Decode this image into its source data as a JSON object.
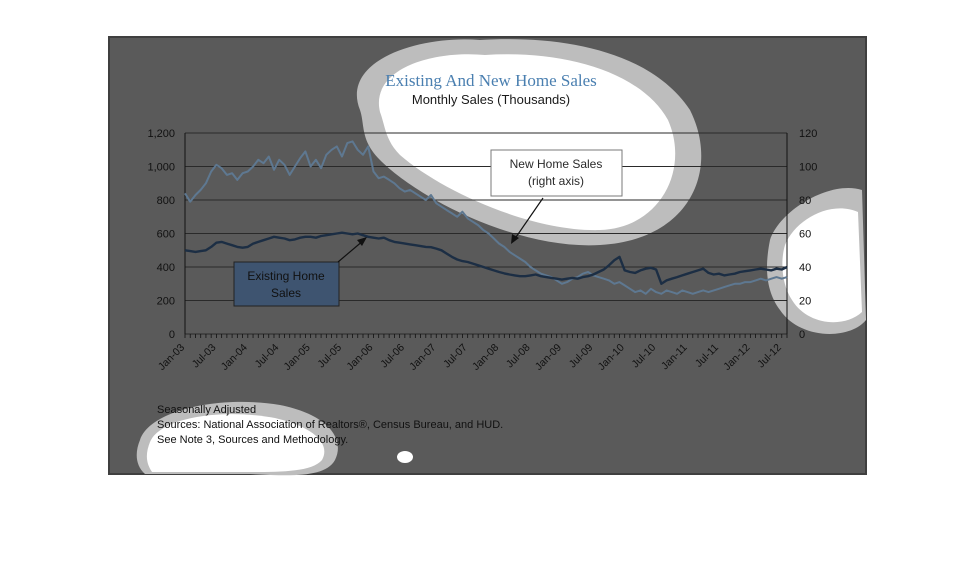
{
  "chart_data": {
    "type": "line",
    "title": "Existing And New Home Sales",
    "subtitle": "Monthly Sales (Thousands)",
    "x_tick_labels": [
      "Jan-03",
      "Jul-03",
      "Jan-04",
      "Jul-04",
      "Jan-05",
      "Jul-05",
      "Jan-06",
      "Jul-06",
      "Jan-07",
      "Jul-07",
      "Jan-08",
      "Jul-08",
      "Jan-09",
      "Jul-09",
      "Jan-10",
      "Jul-10",
      "Jan-11",
      "Jul-11",
      "Jan-12",
      "Jul-12"
    ],
    "y_left": {
      "min": 0,
      "max": 1200,
      "step": 200,
      "tick_labels": [
        "0",
        "200",
        "400",
        "600",
        "800",
        "1,000",
        "1,200"
      ]
    },
    "y_right": {
      "min": 0,
      "max": 120,
      "step": 20,
      "tick_labels": [
        "0",
        "20",
        "40",
        "60",
        "80",
        "100",
        "120"
      ]
    },
    "grid": true,
    "months": 116,
    "series": [
      {
        "name": "New Home Sales (right axis)",
        "axis": "right",
        "color": "#5e7891",
        "values": [
          84,
          79,
          83,
          86,
          90,
          97,
          101,
          99,
          95,
          96,
          92,
          96,
          97,
          100,
          104,
          102,
          106,
          98,
          104,
          101,
          95,
          100,
          105,
          109,
          100,
          104,
          99,
          107,
          110,
          112,
          106,
          114,
          115,
          110,
          107,
          112,
          97,
          93,
          94,
          92,
          90,
          87,
          85,
          86,
          84,
          82,
          80,
          83,
          78,
          76,
          74,
          72,
          70,
          73,
          69,
          67,
          65,
          62,
          60,
          57,
          54,
          52,
          49,
          47,
          45,
          43,
          40,
          38,
          36,
          35,
          34,
          32,
          30,
          31,
          33,
          34,
          36,
          37,
          35,
          34,
          33,
          32,
          30,
          31,
          29,
          27,
          25,
          26,
          24,
          27,
          25,
          24,
          26,
          25,
          24,
          26,
          25,
          24,
          25,
          26,
          25,
          26,
          27,
          28,
          29,
          30,
          30,
          31,
          31,
          32,
          33,
          32,
          33,
          34,
          33,
          34
        ]
      },
      {
        "name": "Existing Home Sales",
        "axis": "left",
        "color": "#1c2e44",
        "values": [
          500,
          495,
          490,
          495,
          500,
          520,
          545,
          550,
          540,
          530,
          520,
          515,
          520,
          540,
          550,
          560,
          570,
          580,
          575,
          570,
          560,
          565,
          575,
          580,
          580,
          575,
          585,
          590,
          595,
          600,
          605,
          600,
          595,
          600,
          590,
          580,
          575,
          570,
          575,
          560,
          550,
          545,
          540,
          535,
          530,
          525,
          520,
          518,
          510,
          500,
          480,
          460,
          445,
          435,
          430,
          420,
          410,
          400,
          390,
          380,
          370,
          362,
          355,
          350,
          345,
          345,
          350,
          355,
          345,
          340,
          335,
          330,
          325,
          330,
          335,
          330,
          340,
          345,
          355,
          370,
          385,
          410,
          440,
          460,
          380,
          370,
          365,
          380,
          390,
          395,
          385,
          300,
          320,
          330,
          340,
          350,
          360,
          370,
          380,
          390,
          365,
          355,
          360,
          350,
          355,
          360,
          370,
          375,
          380,
          385,
          390,
          385,
          380,
          390,
          385,
          400
        ]
      }
    ],
    "annotations": [
      {
        "text_lines": [
          "New Home Sales",
          "(right axis)"
        ],
        "points_to": "New Home Sales (right axis)"
      },
      {
        "text_lines": [
          "Existing Home",
          "Sales"
        ],
        "points_to": "Existing Home Sales"
      }
    ],
    "notes": [
      "Seasonally Adjusted",
      "Sources:  National Association of Realtors®, Census Bureau, and HUD.",
      "See Note 3, Sources and Methodology."
    ]
  },
  "colors": {
    "panel": "#5a5a5a",
    "panel_border": "#3f3f3f",
    "callout_new_bg": "#ffffff",
    "callout_existing_bg": "#3e5470"
  }
}
